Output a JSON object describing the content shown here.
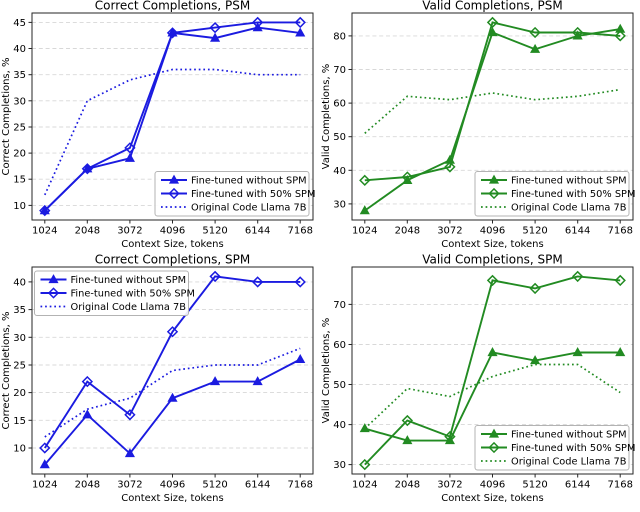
{
  "figure": {
    "background": "#ffffff",
    "grid_rows": 2,
    "grid_cols": 2
  },
  "style": {
    "blue": "#1b1be0",
    "green": "#228b22",
    "grid_color": "#d8d8d8",
    "legend_border": "#b3b3b3",
    "axis_color": "#262626"
  },
  "chart_data": [
    {
      "type": "line",
      "title": "Correct Completions, PSM",
      "xlabel": "Context Size, tokens",
      "ylabel": "Correct Completions, %",
      "x": [
        1024,
        2048,
        3072,
        4096,
        5120,
        6144,
        7168
      ],
      "xlim": [
        716.8,
        7475.2
      ],
      "ylim": [
        7.2,
        46.8
      ],
      "yticks": [
        10,
        15,
        20,
        25,
        30,
        35,
        40,
        45
      ],
      "grid": "y-dashed",
      "color": "#1b1be0",
      "legend_position": "lower-right",
      "series": [
        {
          "name": "Fine-tuned without SPM",
          "marker": "triangle",
          "linestyle": "solid",
          "values": [
            9,
            17,
            19,
            43,
            42,
            44,
            43
          ]
        },
        {
          "name": "Fine-tuned with 50% SPM",
          "marker": "diamond",
          "linestyle": "solid",
          "values": [
            9,
            17,
            21,
            43,
            44,
            45,
            45
          ]
        },
        {
          "name": "Original Code Llama 7B",
          "marker": "none",
          "linestyle": "dotted",
          "values": [
            12,
            30,
            34,
            36,
            36,
            35,
            35
          ]
        }
      ]
    },
    {
      "type": "line",
      "title": "Valid Completions, PSM",
      "xlabel": "Context Size, tokens",
      "ylabel": "Valid Completions, %",
      "x": [
        1024,
        2048,
        3072,
        4096,
        5120,
        6144,
        7168
      ],
      "xlim": [
        716.8,
        7475.2
      ],
      "ylim": [
        25.2,
        86.8
      ],
      "yticks": [
        30,
        40,
        50,
        60,
        70,
        80
      ],
      "grid": "y-dashed",
      "color": "#228b22",
      "legend_position": "lower-right",
      "series": [
        {
          "name": "Fine-tuned without SPM",
          "marker": "triangle",
          "linestyle": "solid",
          "values": [
            28,
            37,
            43,
            81,
            76,
            80,
            82
          ]
        },
        {
          "name": "Fine-tuned with 50% SPM",
          "marker": "diamond",
          "linestyle": "solid",
          "values": [
            37,
            38,
            41,
            84,
            81,
            81,
            80
          ]
        },
        {
          "name": "Original Code Llama 7B",
          "marker": "none",
          "linestyle": "dotted",
          "values": [
            51,
            62,
            61,
            63,
            61,
            62,
            64
          ]
        }
      ]
    },
    {
      "type": "line",
      "title": "Correct Completions, SPM",
      "xlabel": "Context Size, tokens",
      "ylabel": "Correct Completions, %",
      "x": [
        1024,
        2048,
        3072,
        4096,
        5120,
        6144,
        7168
      ],
      "xlim": [
        716.8,
        7475.2
      ],
      "ylim": [
        5.3,
        42.7
      ],
      "yticks": [
        10,
        15,
        20,
        25,
        30,
        35,
        40
      ],
      "grid": "y-dashed",
      "color": "#1b1be0",
      "legend_position": "upper-left",
      "series": [
        {
          "name": "Fine-tuned without SPM",
          "marker": "triangle",
          "linestyle": "solid",
          "values": [
            7,
            16,
            9,
            19,
            22,
            22,
            26
          ]
        },
        {
          "name": "Fine-tuned with 50% SPM",
          "marker": "diamond",
          "linestyle": "solid",
          "values": [
            10,
            22,
            16,
            31,
            41,
            40,
            40
          ]
        },
        {
          "name": "Original Code Llama 7B",
          "marker": "none",
          "linestyle": "dotted",
          "values": [
            12,
            17,
            19,
            24,
            25,
            25,
            28
          ]
        }
      ]
    },
    {
      "type": "line",
      "title": "Valid Completions, SPM",
      "xlabel": "Context Size, tokens",
      "ylabel": "Valid Completions, %",
      "x": [
        1024,
        2048,
        3072,
        4096,
        5120,
        6144,
        7168
      ],
      "xlim": [
        716.8,
        7475.2
      ],
      "ylim": [
        27.65,
        79.35
      ],
      "yticks": [
        30,
        40,
        50,
        60,
        70
      ],
      "grid": "y-dashed",
      "color": "#228b22",
      "legend_position": "lower-right",
      "series": [
        {
          "name": "Fine-tuned without SPM",
          "marker": "triangle",
          "linestyle": "solid",
          "values": [
            39,
            36,
            36,
            58,
            56,
            58,
            58
          ]
        },
        {
          "name": "Fine-tuned with 50% SPM",
          "marker": "diamond",
          "linestyle": "solid",
          "values": [
            30,
            41,
            37,
            76,
            74,
            77,
            76
          ]
        },
        {
          "name": "Original Code Llama 7B",
          "marker": "none",
          "linestyle": "dotted",
          "values": [
            39,
            49,
            47,
            52,
            55,
            55,
            48
          ]
        }
      ]
    }
  ]
}
